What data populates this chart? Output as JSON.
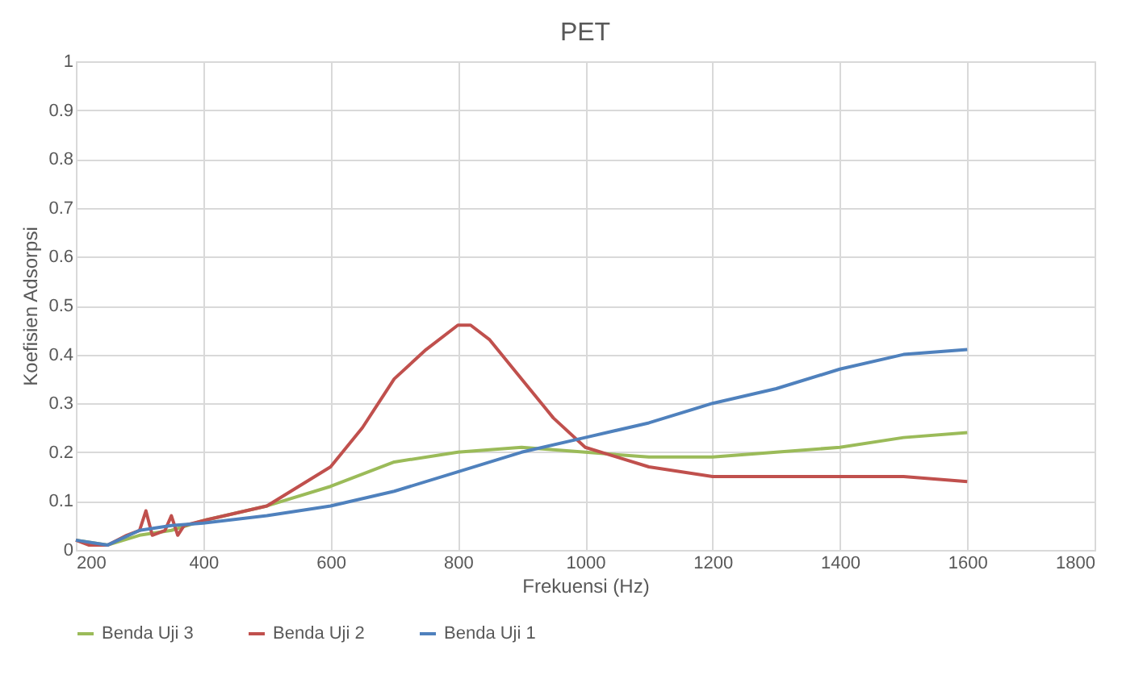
{
  "chart_data": {
    "type": "line",
    "title": "PET",
    "xlabel": "Frekuensi (Hz)",
    "ylabel": "Koefisien Adsorpsi",
    "xlim": [
      200,
      1800
    ],
    "xticks": [
      200,
      400,
      600,
      800,
      1000,
      1200,
      1400,
      1600,
      1800
    ],
    "ylim": [
      0,
      1
    ],
    "yticks": [
      0,
      0.1,
      0.2,
      0.3,
      0.4,
      0.5,
      0.6,
      0.7,
      0.8,
      0.9,
      1
    ],
    "grid": true,
    "legend": "bottom",
    "marker": "none",
    "line_style": "solid",
    "series": [
      {
        "name": "Benda Uji 3",
        "color": "#9bbb59",
        "x": [
          200,
          250,
          300,
          350,
          400,
          500,
          600,
          700,
          800,
          900,
          1000,
          1100,
          1200,
          1300,
          1400,
          1500,
          1600
        ],
        "values": [
          0.02,
          0.01,
          0.03,
          0.04,
          0.06,
          0.09,
          0.13,
          0.18,
          0.2,
          0.21,
          0.2,
          0.19,
          0.19,
          0.2,
          0.21,
          0.23,
          0.24
        ]
      },
      {
        "name": "Benda Uji 2",
        "color": "#c0504d",
        "x": [
          200,
          220,
          250,
          280,
          300,
          310,
          320,
          340,
          350,
          360,
          370,
          400,
          500,
          600,
          650,
          700,
          750,
          800,
          820,
          850,
          900,
          950,
          1000,
          1050,
          1100,
          1200,
          1300,
          1400,
          1500,
          1600
        ],
        "values": [
          0.02,
          0.01,
          0.01,
          0.03,
          0.04,
          0.08,
          0.03,
          0.04,
          0.07,
          0.03,
          0.05,
          0.06,
          0.09,
          0.17,
          0.25,
          0.35,
          0.41,
          0.46,
          0.46,
          0.43,
          0.35,
          0.27,
          0.21,
          0.19,
          0.17,
          0.15,
          0.15,
          0.15,
          0.15,
          0.14
        ]
      },
      {
        "name": "Benda Uji 1",
        "color": "#4f81bd",
        "x": [
          200,
          250,
          300,
          350,
          400,
          500,
          600,
          700,
          800,
          900,
          1000,
          1100,
          1200,
          1300,
          1400,
          1500,
          1600
        ],
        "values": [
          0.02,
          0.01,
          0.04,
          0.05,
          0.055,
          0.07,
          0.09,
          0.12,
          0.16,
          0.2,
          0.23,
          0.26,
          0.3,
          0.33,
          0.37,
          0.4,
          0.41
        ]
      }
    ]
  }
}
